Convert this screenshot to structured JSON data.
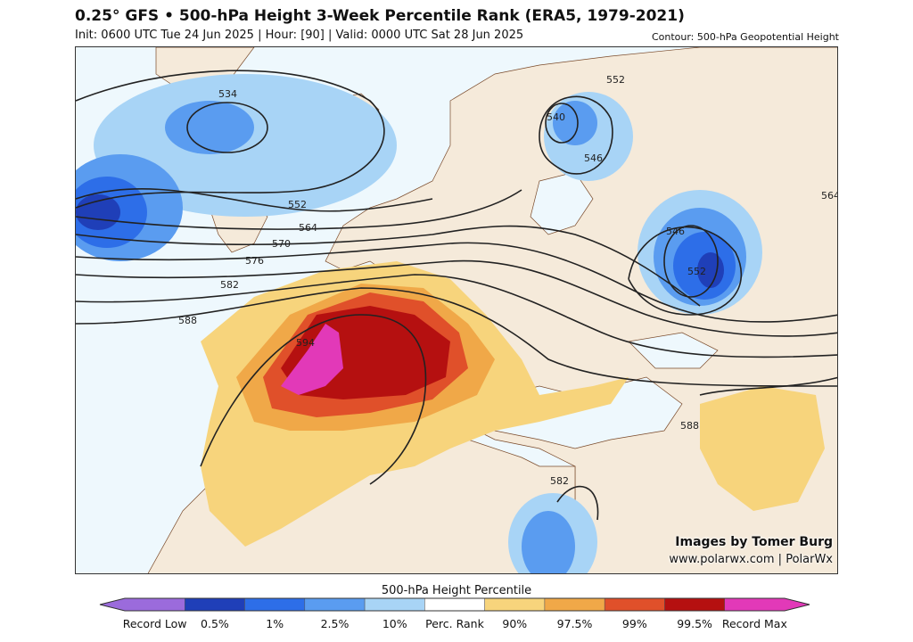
{
  "header": {
    "title": "0.25° GFS • 500-hPa Height 3-Week Percentile Rank (ERA5, 1979-2021)",
    "subtitle": "Init: 0600 UTC Tue 24 Jun 2025 | Hour: [90] | Valid: 0000 UTC Sat 28 Jun 2025",
    "contour_note": "Contour: 500-hPa Geopotential Height"
  },
  "map": {
    "contour_labels": [
      "534",
      "540",
      "546",
      "552",
      "552",
      "564",
      "570",
      "576",
      "582",
      "588",
      "594",
      "546",
      "552",
      "564",
      "588",
      "582"
    ]
  },
  "credits": {
    "line1": "Images by Tomer Burg",
    "line2": "www.polarwx.com | PolarWx"
  },
  "colorbar": {
    "title": "500-hPa Height Percentile",
    "bins": [
      {
        "color": "#9b6bdc"
      },
      {
        "color": "#1f3fb8"
      },
      {
        "color": "#2d6ee8"
      },
      {
        "color": "#5a9cf0"
      },
      {
        "color": "#a8d4f6"
      },
      {
        "color": "#ffffff"
      },
      {
        "color": "#f7d47c"
      },
      {
        "color": "#f0a848"
      },
      {
        "color": "#e0502a"
      },
      {
        "color": "#b51010"
      },
      {
        "color": "#e239b8"
      }
    ],
    "ticks": [
      "Record Low",
      "0.5%",
      "1%",
      "2.5%",
      "10%",
      "Perc. Rank",
      "90%",
      "97.5%",
      "99%",
      "99.5%",
      "Record Max"
    ]
  }
}
